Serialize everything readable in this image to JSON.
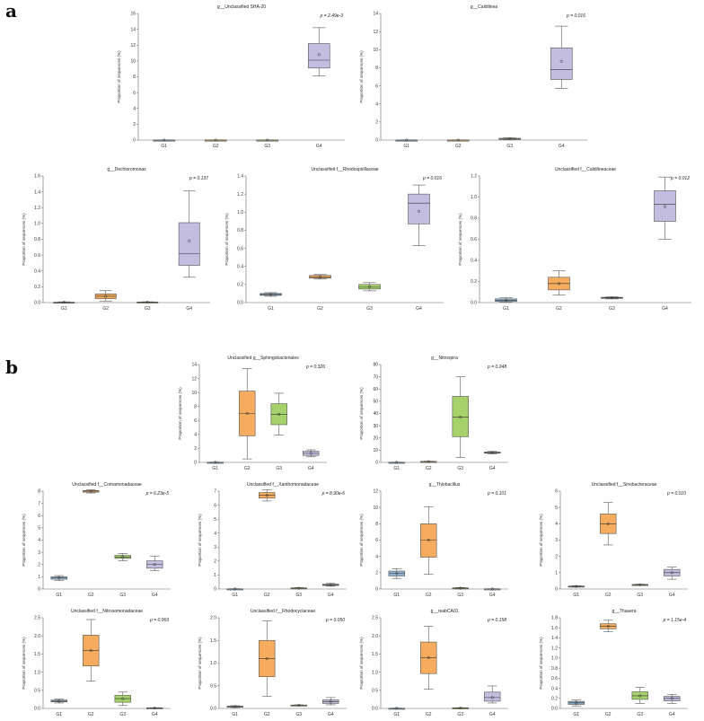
{
  "panels": [
    {
      "label": "a"
    },
    {
      "label": "b"
    }
  ],
  "colors": {
    "G1": "#8fb3d1",
    "G2": "#f5ac5e",
    "G3": "#a5d26a",
    "G4": "#c3bde0",
    "outline": "#555555"
  },
  "chart_data": [
    {
      "type": "box",
      "title": "g__Unclassified SHA-20",
      "p_value": "p = 2.49e-3",
      "ylabel": "Proportion of sequences (%)",
      "ylim": [
        0,
        16
      ],
      "yticks": [
        0,
        2,
        4,
        6,
        8,
        10,
        12,
        14,
        16
      ],
      "categories": [
        "G1",
        "G2",
        "G3",
        "G4"
      ],
      "boxes": [
        {
          "min": 0,
          "q1": 0,
          "median": 0,
          "q3": 0,
          "max": 0,
          "mean": 0
        },
        {
          "min": 0,
          "q1": 0,
          "median": 0,
          "q3": 0,
          "max": 0,
          "mean": 0
        },
        {
          "min": 0,
          "q1": 0,
          "median": 0,
          "q3": 0,
          "max": 0,
          "mean": 0
        },
        {
          "min": 8.1,
          "q1": 9.1,
          "median": 10.1,
          "q3": 12.2,
          "max": 14.2,
          "mean": 10.8
        }
      ]
    },
    {
      "type": "box",
      "title": "g__Caldilinea",
      "p_value": "p = 0.016",
      "ylabel": "Proportion of sequences (%)",
      "ylim": [
        0,
        14
      ],
      "yticks": [
        0,
        2,
        4,
        6,
        8,
        10,
        12,
        14
      ],
      "categories": [
        "G1",
        "G2",
        "G3",
        "G4"
      ],
      "boxes": [
        {
          "min": 0,
          "q1": 0,
          "median": 0,
          "q3": 0,
          "max": 0,
          "mean": 0
        },
        {
          "min": 0,
          "q1": 0,
          "median": 0,
          "q3": 0,
          "max": 0,
          "mean": 0
        },
        {
          "min": 0.05,
          "q1": 0.1,
          "median": 0.15,
          "q3": 0.2,
          "max": 0.25,
          "mean": 0.15
        },
        {
          "min": 5.7,
          "q1": 6.7,
          "median": 7.8,
          "q3": 10.2,
          "max": 12.6,
          "mean": 8.7
        }
      ]
    },
    {
      "type": "box",
      "title": "g__Dechloromonas",
      "p_value": "p = 0.137",
      "ylabel": "Proportion of sequences (%)",
      "ylim": [
        0,
        1.6
      ],
      "yticks": [
        0.0,
        0.2,
        0.4,
        0.6,
        0.8,
        1.0,
        1.2,
        1.4,
        1.6
      ],
      "categories": [
        "G1",
        "G2",
        "G3",
        "G4"
      ],
      "boxes": [
        {
          "min": 0,
          "q1": 0,
          "median": 0,
          "q3": 0.005,
          "max": 0.01,
          "mean": 0.005
        },
        {
          "min": 0.02,
          "q1": 0.05,
          "median": 0.08,
          "q3": 0.11,
          "max": 0.15,
          "mean": 0.08
        },
        {
          "min": 0,
          "q1": 0.002,
          "median": 0.004,
          "q3": 0.006,
          "max": 0.01,
          "mean": 0.004
        },
        {
          "min": 0.32,
          "q1": 0.47,
          "median": 0.62,
          "q3": 1.01,
          "max": 1.41,
          "mean": 0.78
        }
      ]
    },
    {
      "type": "box",
      "title": "Unclassified f__Rhodospirillaceae",
      "p_value": "p = 0.016",
      "ylabel": "Proportion of sequences (%)",
      "ylim": [
        0,
        1.4
      ],
      "yticks": [
        0.0,
        0.2,
        0.4,
        0.6,
        0.8,
        1.0,
        1.2,
        1.4
      ],
      "categories": [
        "G1",
        "G2",
        "G3",
        "G4"
      ],
      "boxes": [
        {
          "min": 0.07,
          "q1": 0.08,
          "median": 0.09,
          "q3": 0.1,
          "max": 0.11,
          "mean": 0.09
        },
        {
          "min": 0.26,
          "q1": 0.27,
          "median": 0.28,
          "q3": 0.3,
          "max": 0.31,
          "mean": 0.285
        },
        {
          "min": 0.13,
          "q1": 0.15,
          "median": 0.17,
          "q3": 0.2,
          "max": 0.22,
          "mean": 0.175
        },
        {
          "min": 0.63,
          "q1": 0.87,
          "median": 1.1,
          "q3": 1.2,
          "max": 1.3,
          "mean": 1.01
        }
      ]
    },
    {
      "type": "box",
      "title": "Unclassified f__Caldilineaceae",
      "p_value": "p = 0.012",
      "ylabel": "Proportion of sequences (%)",
      "ylim": [
        0,
        1.2
      ],
      "yticks": [
        0.0,
        0.2,
        0.4,
        0.6,
        0.8,
        1.0,
        1.2
      ],
      "categories": [
        "G1",
        "G2",
        "G3",
        "G4"
      ],
      "boxes": [
        {
          "min": 0.005,
          "q1": 0.01,
          "median": 0.02,
          "q3": 0.035,
          "max": 0.045,
          "mean": 0.02
        },
        {
          "min": 0.07,
          "q1": 0.12,
          "median": 0.18,
          "q3": 0.24,
          "max": 0.3,
          "mean": 0.18
        },
        {
          "min": 0.035,
          "q1": 0.04,
          "median": 0.045,
          "q3": 0.05,
          "max": 0.055,
          "mean": 0.045
        },
        {
          "min": 0.6,
          "q1": 0.77,
          "median": 0.93,
          "q3": 1.06,
          "max": 1.19,
          "mean": 0.91
        }
      ]
    },
    {
      "type": "box",
      "title": "Unclassified g__Sphingobacteriales",
      "p_value": "p = 0.326",
      "ylabel": "Proportion of sequences (%)",
      "ylim": [
        0,
        14
      ],
      "yticks": [
        0,
        2,
        4,
        6,
        8,
        10,
        12,
        14
      ],
      "categories": [
        "G1",
        "G2",
        "G3",
        "G4"
      ],
      "boxes": [
        {
          "min": 0,
          "q1": 0,
          "median": 0,
          "q3": 0.02,
          "max": 0.05,
          "mean": 0.01
        },
        {
          "min": 0.5,
          "q1": 3.8,
          "median": 7.0,
          "q3": 10.2,
          "max": 13.4,
          "mean": 7.0
        },
        {
          "min": 3.9,
          "q1": 5.4,
          "median": 6.9,
          "q3": 8.4,
          "max": 9.9,
          "mean": 6.9
        },
        {
          "min": 0.8,
          "q1": 1.0,
          "median": 1.3,
          "q3": 1.6,
          "max": 1.8,
          "mean": 1.3
        }
      ]
    },
    {
      "type": "box",
      "title": "g__Nitrospira",
      "p_value": "p = 0.248",
      "ylabel": "Proportion of sequences (%)",
      "ylim": [
        0,
        80
      ],
      "yticks": [
        0,
        10,
        20,
        30,
        40,
        50,
        60,
        70,
        80
      ],
      "categories": [
        "G1",
        "G2",
        "G3",
        "G4"
      ],
      "boxes": [
        {
          "min": 0,
          "q1": 0,
          "median": 0,
          "q3": 0.1,
          "max": 0.2,
          "mean": 0.05
        },
        {
          "min": 0.2,
          "q1": 0.4,
          "median": 0.6,
          "q3": 0.8,
          "max": 1.0,
          "mean": 0.6
        },
        {
          "min": 4,
          "q1": 21,
          "median": 37,
          "q3": 54,
          "max": 70,
          "mean": 37
        },
        {
          "min": 7,
          "q1": 7.5,
          "median": 8,
          "q3": 8.5,
          "max": 9,
          "mean": 8
        }
      ]
    },
    {
      "type": "box",
      "title": "Unclassified f__Comamonadaceae",
      "p_value": "p = 6.23e-5",
      "ylabel": "Proportion of sequences (%)",
      "ylim": [
        0,
        8
      ],
      "yticks": [
        0,
        1,
        2,
        3,
        4,
        5,
        6,
        7,
        8
      ],
      "categories": [
        "G1",
        "G2",
        "G3",
        "G4"
      ],
      "boxes": [
        {
          "min": 0.7,
          "q1": 0.8,
          "median": 0.9,
          "q3": 1.0,
          "max": 1.1,
          "mean": 0.9
        },
        {
          "min": 7.85,
          "q1": 7.92,
          "median": 8.0,
          "q3": 8.05,
          "max": 8.1,
          "mean": 8.0
        },
        {
          "min": 2.3,
          "q1": 2.5,
          "median": 2.6,
          "q3": 2.75,
          "max": 2.9,
          "mean": 2.6
        },
        {
          "min": 1.5,
          "q1": 1.7,
          "median": 2.0,
          "q3": 2.3,
          "max": 2.7,
          "mean": 2.0
        }
      ]
    },
    {
      "type": "box",
      "title": "Unclassified f__Xanthomonadaceae",
      "p_value": "p = 8.90e-6",
      "ylabel": "Proportion of sequences (%)",
      "ylim": [
        0,
        7
      ],
      "yticks": [
        0,
        1,
        2,
        3,
        4,
        5,
        6,
        7
      ],
      "categories": [
        "G1",
        "G2",
        "G3",
        "G4"
      ],
      "boxes": [
        {
          "min": 0,
          "q1": 0,
          "median": 0,
          "q3": 0.01,
          "max": 0.02,
          "mean": 0.01
        },
        {
          "min": 6.3,
          "q1": 6.5,
          "median": 6.7,
          "q3": 6.9,
          "max": 7.1,
          "mean": 6.7
        },
        {
          "min": 0.02,
          "q1": 0.04,
          "median": 0.06,
          "q3": 0.08,
          "max": 0.1,
          "mean": 0.06
        },
        {
          "min": 0.2,
          "q1": 0.25,
          "median": 0.3,
          "q3": 0.35,
          "max": 0.4,
          "mean": 0.3
        }
      ]
    },
    {
      "type": "box",
      "title": "g__Thiobacillus",
      "p_value": "p = 0.101",
      "ylabel": "Proportion of sequences (%)",
      "ylim": [
        0,
        12
      ],
      "yticks": [
        0,
        2,
        4,
        6,
        8,
        10,
        12
      ],
      "categories": [
        "G1",
        "G2",
        "G3",
        "G4"
      ],
      "boxes": [
        {
          "min": 1.3,
          "q1": 1.6,
          "median": 1.9,
          "q3": 2.2,
          "max": 2.5,
          "mean": 1.9
        },
        {
          "min": 1.8,
          "q1": 3.9,
          "median": 6.0,
          "q3": 8.0,
          "max": 10.1,
          "mean": 6.0
        },
        {
          "min": 0.03,
          "q1": 0.07,
          "median": 0.1,
          "q3": 0.14,
          "max": 0.18,
          "mean": 0.1
        },
        {
          "min": 0,
          "q1": 0,
          "median": 0.01,
          "q3": 0.02,
          "max": 0.03,
          "mean": 0.01
        }
      ]
    },
    {
      "type": "box",
      "title": "Unclassified f__Sinobacteraceae",
      "p_value": "p = 0.010",
      "ylabel": "Proportion of sequences (%)",
      "ylim": [
        0,
        6
      ],
      "yticks": [
        0,
        1,
        2,
        3,
        4,
        5,
        6
      ],
      "categories": [
        "G1",
        "G2",
        "G3",
        "G4"
      ],
      "boxes": [
        {
          "min": 0.12,
          "q1": 0.14,
          "median": 0.16,
          "q3": 0.18,
          "max": 0.2,
          "mean": 0.16
        },
        {
          "min": 2.7,
          "q1": 3.4,
          "median": 4.0,
          "q3": 4.6,
          "max": 5.3,
          "mean": 4.0
        },
        {
          "min": 0.22,
          "q1": 0.24,
          "median": 0.26,
          "q3": 0.28,
          "max": 0.3,
          "mean": 0.26
        },
        {
          "min": 0.6,
          "q1": 0.8,
          "median": 1.0,
          "q3": 1.2,
          "max": 1.35,
          "mean": 1.0
        }
      ]
    },
    {
      "type": "box",
      "title": "Unclassified f__Nitrosomonadaceae",
      "p_value": "p = 0.069",
      "ylabel": "Proportion of sequences (%)",
      "ylim": [
        0,
        2.5
      ],
      "yticks": [
        0.0,
        0.5,
        1.0,
        1.5,
        2.0,
        2.5
      ],
      "categories": [
        "G1",
        "G2",
        "G3",
        "G4"
      ],
      "boxes": [
        {
          "min": 0.15,
          "q1": 0.18,
          "median": 0.2,
          "q3": 0.23,
          "max": 0.26,
          "mean": 0.2
        },
        {
          "min": 0.75,
          "q1": 1.17,
          "median": 1.6,
          "q3": 2.02,
          "max": 2.45,
          "mean": 1.6
        },
        {
          "min": 0.08,
          "q1": 0.17,
          "median": 0.27,
          "q3": 0.36,
          "max": 0.45,
          "mean": 0.27
        },
        {
          "min": 0,
          "q1": 0.005,
          "median": 0.01,
          "q3": 0.015,
          "max": 0.02,
          "mean": 0.01
        }
      ]
    },
    {
      "type": "box",
      "title": "Unclassified f__Rhodocyclaceae",
      "p_value": "p = 0.050",
      "ylabel": "Proportion of sequences (%)",
      "ylim": [
        0,
        2.0
      ],
      "yticks": [
        0.0,
        0.5,
        1.0,
        1.5,
        2.0
      ],
      "categories": [
        "G1",
        "G2",
        "G3",
        "G4"
      ],
      "boxes": [
        {
          "min": 0.02,
          "q1": 0.03,
          "median": 0.04,
          "q3": 0.05,
          "max": 0.06,
          "mean": 0.04
        },
        {
          "min": 0.27,
          "q1": 0.7,
          "median": 1.1,
          "q3": 1.5,
          "max": 1.93,
          "mean": 1.1
        },
        {
          "min": 0.06,
          "q1": 0.065,
          "median": 0.07,
          "q3": 0.075,
          "max": 0.08,
          "mean": 0.07
        },
        {
          "min": 0.08,
          "q1": 0.11,
          "median": 0.15,
          "q3": 0.19,
          "max": 0.24,
          "mean": 0.15
        }
      ]
    },
    {
      "type": "box",
      "title": "g__reabCA01",
      "p_value": "p = 0.158",
      "ylabel": "Proportion of sequences (%)",
      "ylim": [
        0,
        2.5
      ],
      "yticks": [
        0.0,
        0.5,
        1.0,
        1.5,
        2.0,
        2.5
      ],
      "categories": [
        "G1",
        "G2",
        "G3",
        "G4"
      ],
      "boxes": [
        {
          "min": 0,
          "q1": 0,
          "median": 0,
          "q3": 0.005,
          "max": 0.01,
          "mean": 0.005
        },
        {
          "min": 0.53,
          "q1": 0.96,
          "median": 1.4,
          "q3": 1.83,
          "max": 2.26,
          "mean": 1.4
        },
        {
          "min": 0,
          "q1": 0.005,
          "median": 0.01,
          "q3": 0.015,
          "max": 0.02,
          "mean": 0.01
        },
        {
          "min": 0.15,
          "q1": 0.2,
          "median": 0.3,
          "q3": 0.45,
          "max": 0.62,
          "mean": 0.3
        }
      ]
    },
    {
      "type": "box",
      "title": "g__Thauera",
      "p_value": "p = 1.15e-4",
      "ylabel": "Proportion of sequences (%)",
      "ylim": [
        0,
        1.8
      ],
      "yticks": [
        0.0,
        0.2,
        0.4,
        0.6,
        0.8,
        1.0,
        1.2,
        1.4,
        1.6,
        1.8
      ],
      "categories": [
        "G1",
        "G2",
        "G3",
        "G4"
      ],
      "boxes": [
        {
          "min": 0.05,
          "q1": 0.08,
          "median": 0.11,
          "q3": 0.14,
          "max": 0.17,
          "mean": 0.11
        },
        {
          "min": 1.52,
          "q1": 1.58,
          "median": 1.63,
          "q3": 1.68,
          "max": 1.75,
          "mean": 1.63
        },
        {
          "min": 0.1,
          "q1": 0.18,
          "median": 0.25,
          "q3": 0.33,
          "max": 0.42,
          "mean": 0.25
        },
        {
          "min": 0.1,
          "q1": 0.15,
          "median": 0.2,
          "q3": 0.24,
          "max": 0.28,
          "mean": 0.2
        }
      ]
    }
  ]
}
